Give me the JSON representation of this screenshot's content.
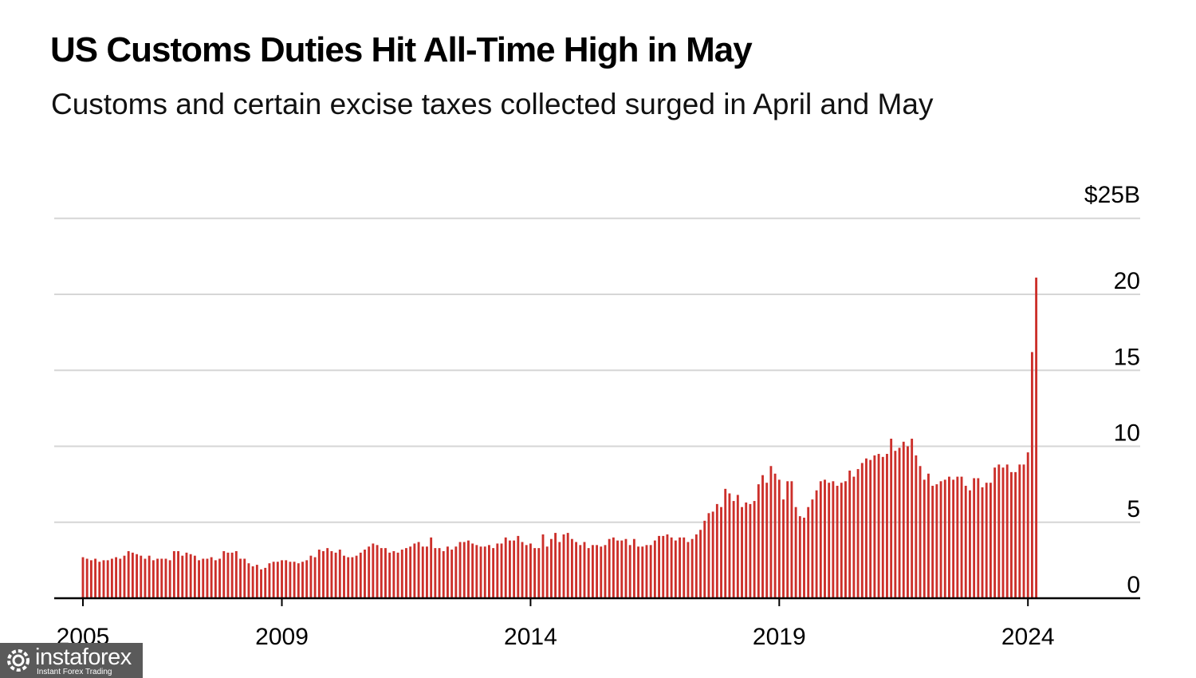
{
  "title": "US Customs Duties Hit All-Time High in May",
  "subtitle": "Customs and certain excise taxes collected surged in April and May",
  "watermark": {
    "name": "instaforex",
    "tagline": "Instant Forex Trading",
    "icon": "gear-logo-icon"
  },
  "colors": {
    "bar": "#cc2f2a",
    "grid": "#d6d6d6",
    "axis": "#000000"
  },
  "chart_data": {
    "type": "bar",
    "x_unit": "month",
    "start": "2005-01",
    "end": "2024-05",
    "ylim": [
      0,
      25
    ],
    "y_axis_position": "right",
    "grid": true,
    "y_ticks": [
      0,
      5,
      10,
      15,
      20,
      25
    ],
    "y_tick_labels": [
      "0",
      "5",
      "10",
      "15",
      "20",
      "$25B"
    ],
    "x_ticks": [
      "2005",
      "2009",
      "2014",
      "2019",
      "2024"
    ],
    "values": [
      2.7,
      2.6,
      2.5,
      2.6,
      2.4,
      2.5,
      2.5,
      2.6,
      2.7,
      2.6,
      2.8,
      3.1,
      3.0,
      2.9,
      2.8,
      2.6,
      2.8,
      2.5,
      2.6,
      2.6,
      2.6,
      2.5,
      3.1,
      3.1,
      2.8,
      3.0,
      2.9,
      2.8,
      2.5,
      2.6,
      2.6,
      2.7,
      2.5,
      2.6,
      3.1,
      3.0,
      3.0,
      3.1,
      2.6,
      2.6,
      2.3,
      2.1,
      2.2,
      1.9,
      2.0,
      2.3,
      2.4,
      2.4,
      2.5,
      2.5,
      2.4,
      2.4,
      2.3,
      2.4,
      2.5,
      2.8,
      2.7,
      3.2,
      3.1,
      3.3,
      3.1,
      3.0,
      3.2,
      2.8,
      2.7,
      2.7,
      2.8,
      3.0,
      3.2,
      3.4,
      3.6,
      3.5,
      3.3,
      3.3,
      3.0,
      3.1,
      3.0,
      3.2,
      3.3,
      3.4,
      3.6,
      3.7,
      3.4,
      3.4,
      4.0,
      3.3,
      3.3,
      3.1,
      3.4,
      3.2,
      3.4,
      3.7,
      3.7,
      3.8,
      3.6,
      3.5,
      3.4,
      3.4,
      3.5,
      3.3,
      3.6,
      3.6,
      4.0,
      3.8,
      3.8,
      4.1,
      3.7,
      3.5,
      3.6,
      3.3,
      3.3,
      4.2,
      3.4,
      3.9,
      4.3,
      3.7,
      4.2,
      4.3,
      3.9,
      3.7,
      3.5,
      3.7,
      3.3,
      3.5,
      3.5,
      3.4,
      3.5,
      3.9,
      4.0,
      3.8,
      3.8,
      3.9,
      3.5,
      3.9,
      3.4,
      3.4,
      3.5,
      3.5,
      3.8,
      4.1,
      4.1,
      4.2,
      4.0,
      3.8,
      4.0,
      4.0,
      3.7,
      3.9,
      4.2,
      4.5,
      5.1,
      5.6,
      5.7,
      6.2,
      6.0,
      7.2,
      6.9,
      6.4,
      6.8,
      6.0,
      6.3,
      6.2,
      6.4,
      7.5,
      8.1,
      7.6,
      8.7,
      8.2,
      7.8,
      6.5,
      7.7,
      7.7,
      6.0,
      5.4,
      5.3,
      6.0,
      6.5,
      7.1,
      7.7,
      7.8,
      7.6,
      7.7,
      7.4,
      7.6,
      7.7,
      8.4,
      8.0,
      8.5,
      8.9,
      9.2,
      9.1,
      9.4,
      9.5,
      9.3,
      9.5,
      10.5,
      9.7,
      9.9,
      10.3,
      10.0,
      10.5,
      9.4,
      8.7,
      7.8,
      8.2,
      7.4,
      7.5,
      7.7,
      7.8,
      8.0,
      7.8,
      8.0,
      8.0,
      7.4,
      7.1,
      7.9,
      7.9,
      7.3,
      7.6,
      7.6,
      8.6,
      8.8,
      8.6,
      8.8,
      8.3,
      8.3,
      8.8,
      8.8,
      9.6,
      16.2,
      21.1
    ]
  }
}
